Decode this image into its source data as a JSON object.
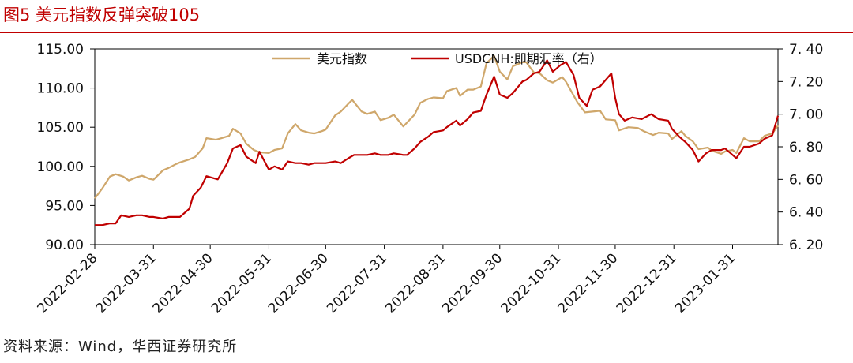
{
  "title": "图5 美元指数反弹突破105",
  "source": "资料来源：Wind，华西证券研究所",
  "colors": {
    "title": "#c00000",
    "dxy": "#cfa76b",
    "usdcnh": "#c00000",
    "axis": "#000000"
  },
  "chart_data": {
    "type": "line",
    "title": "",
    "x_ticks": [
      "2022-02-28",
      "2022-03-31",
      "2022-04-30",
      "2022-05-31",
      "2022-06-30",
      "2022-07-31",
      "2022-08-31",
      "2022-09-30",
      "2022-10-31",
      "2022-11-30",
      "2022-12-31",
      "2023-01-31"
    ],
    "y_left": {
      "range": [
        90,
        115
      ],
      "ticks": [
        "90.00",
        "95.00",
        "100.00",
        "105.00",
        "110.00",
        "115.00"
      ]
    },
    "y_right": {
      "range": [
        6.2,
        7.4
      ],
      "ticks": [
        "6.20",
        "6.40",
        "6.60",
        "6.80",
        "7.00",
        "7.20",
        "7.40"
      ]
    },
    "x_range": [
      "2022-02-28",
      "2023-02-24"
    ],
    "legend_position": "top-center",
    "grid": false,
    "series": [
      {
        "name": "美元指数",
        "axis": "left",
        "points": [
          [
            "2022-02-28",
            95.9
          ],
          [
            "2022-03-04",
            97.2
          ],
          [
            "2022-03-08",
            98.7
          ],
          [
            "2022-03-11",
            99.0
          ],
          [
            "2022-03-15",
            98.7
          ],
          [
            "2022-03-18",
            98.2
          ],
          [
            "2022-03-22",
            98.6
          ],
          [
            "2022-03-25",
            98.8
          ],
          [
            "2022-03-29",
            98.4
          ],
          [
            "2022-03-31",
            98.3
          ],
          [
            "2022-04-05",
            99.5
          ],
          [
            "2022-04-08",
            99.8
          ],
          [
            "2022-04-12",
            100.3
          ],
          [
            "2022-04-14",
            100.5
          ],
          [
            "2022-04-19",
            100.9
          ],
          [
            "2022-04-22",
            101.2
          ],
          [
            "2022-04-26",
            102.3
          ],
          [
            "2022-04-28",
            103.6
          ],
          [
            "2022-05-03",
            103.4
          ],
          [
            "2022-05-06",
            103.6
          ],
          [
            "2022-05-10",
            103.9
          ],
          [
            "2022-05-12",
            104.8
          ],
          [
            "2022-05-16",
            104.2
          ],
          [
            "2022-05-19",
            102.9
          ],
          [
            "2022-05-23",
            102.1
          ],
          [
            "2022-05-26",
            101.8
          ],
          [
            "2022-05-31",
            101.7
          ],
          [
            "2022-06-03",
            102.1
          ],
          [
            "2022-06-07",
            102.3
          ],
          [
            "2022-06-10",
            104.2
          ],
          [
            "2022-06-14",
            105.4
          ],
          [
            "2022-06-17",
            104.6
          ],
          [
            "2022-06-21",
            104.3
          ],
          [
            "2022-06-24",
            104.2
          ],
          [
            "2022-06-28",
            104.5
          ],
          [
            "2022-06-30",
            104.7
          ],
          [
            "2022-07-05",
            106.5
          ],
          [
            "2022-07-08",
            107.0
          ],
          [
            "2022-07-12",
            108.0
          ],
          [
            "2022-07-14",
            108.5
          ],
          [
            "2022-07-19",
            107.0
          ],
          [
            "2022-07-22",
            106.7
          ],
          [
            "2022-07-26",
            107.0
          ],
          [
            "2022-07-29",
            105.9
          ],
          [
            "2022-08-02",
            106.2
          ],
          [
            "2022-08-05",
            106.6
          ],
          [
            "2022-08-10",
            105.1
          ],
          [
            "2022-08-12",
            105.6
          ],
          [
            "2022-08-16",
            106.6
          ],
          [
            "2022-08-19",
            108.1
          ],
          [
            "2022-08-23",
            108.6
          ],
          [
            "2022-08-26",
            108.8
          ],
          [
            "2022-08-31",
            108.7
          ],
          [
            "2022-09-02",
            109.6
          ],
          [
            "2022-09-07",
            110.0
          ],
          [
            "2022-09-09",
            109.0
          ],
          [
            "2022-09-13",
            109.8
          ],
          [
            "2022-09-16",
            109.8
          ],
          [
            "2022-09-20",
            110.2
          ],
          [
            "2022-09-23",
            113.2
          ],
          [
            "2022-09-27",
            114.1
          ],
          [
            "2022-09-30",
            112.1
          ],
          [
            "2022-10-04",
            111.1
          ],
          [
            "2022-10-07",
            112.8
          ],
          [
            "2022-10-12",
            113.3
          ],
          [
            "2022-10-14",
            113.3
          ],
          [
            "2022-10-18",
            112.0
          ],
          [
            "2022-10-21",
            111.9
          ],
          [
            "2022-10-25",
            111.0
          ],
          [
            "2022-10-28",
            110.7
          ],
          [
            "2022-11-02",
            111.4
          ],
          [
            "2022-11-04",
            110.8
          ],
          [
            "2022-11-10",
            108.2
          ],
          [
            "2022-11-14",
            106.9
          ],
          [
            "2022-11-18",
            107.0
          ],
          [
            "2022-11-22",
            107.1
          ],
          [
            "2022-11-25",
            106.0
          ],
          [
            "2022-11-30",
            105.9
          ],
          [
            "2022-12-02",
            104.6
          ],
          [
            "2022-12-07",
            105.0
          ],
          [
            "2022-12-12",
            104.9
          ],
          [
            "2022-12-15",
            104.5
          ],
          [
            "2022-12-20",
            104.0
          ],
          [
            "2022-12-23",
            104.3
          ],
          [
            "2022-12-28",
            104.2
          ],
          [
            "2022-12-30",
            103.5
          ],
          [
            "2023-01-04",
            104.5
          ],
          [
            "2023-01-06",
            103.9
          ],
          [
            "2023-01-10",
            103.2
          ],
          [
            "2023-01-13",
            102.2
          ],
          [
            "2023-01-18",
            102.4
          ],
          [
            "2023-01-20",
            102.0
          ],
          [
            "2023-01-25",
            101.6
          ],
          [
            "2023-01-27",
            101.9
          ],
          [
            "2023-01-31",
            102.1
          ],
          [
            "2023-02-02",
            101.7
          ],
          [
            "2023-02-06",
            103.6
          ],
          [
            "2023-02-09",
            103.2
          ],
          [
            "2023-02-14",
            103.2
          ],
          [
            "2023-02-17",
            103.9
          ],
          [
            "2023-02-21",
            104.2
          ],
          [
            "2023-02-24",
            105.2
          ]
        ]
      },
      {
        "name": "USDCNH:即期汇率（右）",
        "axis": "right",
        "points": [
          [
            "2022-02-28",
            6.32
          ],
          [
            "2022-03-04",
            6.32
          ],
          [
            "2022-03-08",
            6.33
          ],
          [
            "2022-03-11",
            6.33
          ],
          [
            "2022-03-14",
            6.38
          ],
          [
            "2022-03-18",
            6.37
          ],
          [
            "2022-03-22",
            6.38
          ],
          [
            "2022-03-25",
            6.38
          ],
          [
            "2022-03-29",
            6.37
          ],
          [
            "2022-03-31",
            6.37
          ],
          [
            "2022-04-05",
            6.36
          ],
          [
            "2022-04-08",
            6.37
          ],
          [
            "2022-04-12",
            6.37
          ],
          [
            "2022-04-14",
            6.37
          ],
          [
            "2022-04-19",
            6.42
          ],
          [
            "2022-04-21",
            6.5
          ],
          [
            "2022-04-25",
            6.55
          ],
          [
            "2022-04-28",
            6.62
          ],
          [
            "2022-05-04",
            6.6
          ],
          [
            "2022-05-09",
            6.7
          ],
          [
            "2022-05-12",
            6.79
          ],
          [
            "2022-05-16",
            6.81
          ],
          [
            "2022-05-19",
            6.74
          ],
          [
            "2022-05-24",
            6.7
          ],
          [
            "2022-05-26",
            6.77
          ],
          [
            "2022-05-31",
            6.66
          ],
          [
            "2022-06-03",
            6.68
          ],
          [
            "2022-06-07",
            6.66
          ],
          [
            "2022-06-10",
            6.71
          ],
          [
            "2022-06-14",
            6.7
          ],
          [
            "2022-06-17",
            6.7
          ],
          [
            "2022-06-21",
            6.69
          ],
          [
            "2022-06-24",
            6.7
          ],
          [
            "2022-06-30",
            6.7
          ],
          [
            "2022-07-05",
            6.71
          ],
          [
            "2022-07-08",
            6.7
          ],
          [
            "2022-07-12",
            6.73
          ],
          [
            "2022-07-15",
            6.75
          ],
          [
            "2022-07-19",
            6.75
          ],
          [
            "2022-07-22",
            6.75
          ],
          [
            "2022-07-26",
            6.76
          ],
          [
            "2022-07-29",
            6.75
          ],
          [
            "2022-08-02",
            6.75
          ],
          [
            "2022-08-05",
            6.76
          ],
          [
            "2022-08-10",
            6.75
          ],
          [
            "2022-08-12",
            6.75
          ],
          [
            "2022-08-16",
            6.79
          ],
          [
            "2022-08-19",
            6.83
          ],
          [
            "2022-08-23",
            6.86
          ],
          [
            "2022-08-26",
            6.89
          ],
          [
            "2022-08-31",
            6.9
          ],
          [
            "2022-09-02",
            6.92
          ],
          [
            "2022-09-07",
            6.96
          ],
          [
            "2022-09-09",
            6.93
          ],
          [
            "2022-09-13",
            6.97
          ],
          [
            "2022-09-16",
            7.01
          ],
          [
            "2022-09-20",
            7.02
          ],
          [
            "2022-09-23",
            7.12
          ],
          [
            "2022-09-27",
            7.23
          ],
          [
            "2022-09-30",
            7.12
          ],
          [
            "2022-10-04",
            7.1
          ],
          [
            "2022-10-07",
            7.13
          ],
          [
            "2022-10-12",
            7.2
          ],
          [
            "2022-10-14",
            7.21
          ],
          [
            "2022-10-18",
            7.25
          ],
          [
            "2022-10-21",
            7.26
          ],
          [
            "2022-10-25",
            7.33
          ],
          [
            "2022-10-28",
            7.26
          ],
          [
            "2022-11-01",
            7.3
          ],
          [
            "2022-11-04",
            7.32
          ],
          [
            "2022-11-08",
            7.24
          ],
          [
            "2022-11-11",
            7.1
          ],
          [
            "2022-11-15",
            7.05
          ],
          [
            "2022-11-18",
            7.15
          ],
          [
            "2022-11-22",
            7.17
          ],
          [
            "2022-11-28",
            7.25
          ],
          [
            "2022-11-30",
            7.1
          ],
          [
            "2022-12-02",
            7.0
          ],
          [
            "2022-12-05",
            6.96
          ],
          [
            "2022-12-09",
            6.98
          ],
          [
            "2022-12-14",
            6.97
          ],
          [
            "2022-12-19",
            7.0
          ],
          [
            "2022-12-23",
            6.97
          ],
          [
            "2022-12-28",
            6.96
          ],
          [
            "2022-12-30",
            6.91
          ],
          [
            "2023-01-03",
            6.86
          ],
          [
            "2023-01-06",
            6.83
          ],
          [
            "2023-01-10",
            6.78
          ],
          [
            "2023-01-13",
            6.71
          ],
          [
            "2023-01-17",
            6.76
          ],
          [
            "2023-01-20",
            6.78
          ],
          [
            "2023-01-25",
            6.78
          ],
          [
            "2023-01-27",
            6.79
          ],
          [
            "2023-01-31",
            6.75
          ],
          [
            "2023-02-02",
            6.73
          ],
          [
            "2023-02-06",
            6.8
          ],
          [
            "2023-02-09",
            6.8
          ],
          [
            "2023-02-14",
            6.82
          ],
          [
            "2023-02-17",
            6.85
          ],
          [
            "2023-02-21",
            6.87
          ],
          [
            "2023-02-24",
            6.99
          ]
        ]
      }
    ]
  }
}
